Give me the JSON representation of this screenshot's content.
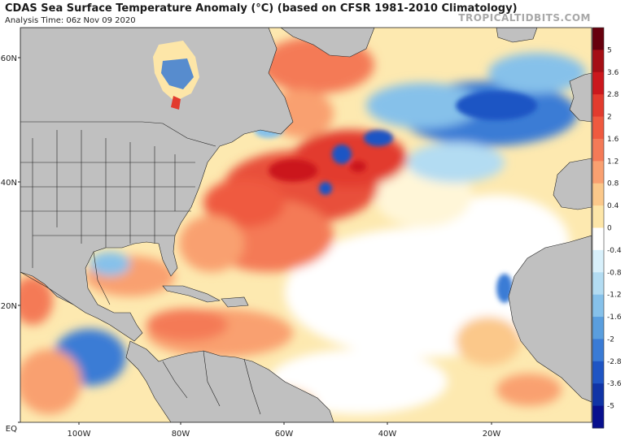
{
  "header": {
    "title": "CDAS Sea Surface Temperature Anomaly (°C) (based on CFSR 1981-2010 Climatology)",
    "analysis_time": "Analysis Time: 06z Nov 09 2020",
    "brand": "TROPICALTIDBITS.COM"
  },
  "map": {
    "lat_labels": [
      "60N",
      "40N",
      "20N",
      "EQ"
    ],
    "lon_labels": [
      "100W",
      "80W",
      "60W",
      "40W",
      "20W"
    ],
    "colors": {
      "land": "#c0c0c0",
      "ocean_neutral": "#ffffff",
      "border": "#222222"
    }
  },
  "colorbar": {
    "labels": [
      "5",
      "3.6",
      "2.8",
      "2",
      "1.6",
      "1.2",
      "0.8",
      "0.4",
      "0",
      "-0.4",
      "-0.8",
      "-1.2",
      "-1.6",
      "-2",
      "-2.8",
      "-3.6",
      "-5"
    ],
    "colors": [
      "#67000d",
      "#a50f15",
      "#cb181d",
      "#e23b2e",
      "#ef5a3f",
      "#f47a57",
      "#f9a070",
      "#fbc88a",
      "#fde6a8",
      "#ffffff",
      "#d8f0fb",
      "#b3dcf2",
      "#86c1ea",
      "#5a9ede",
      "#3a7bd5",
      "#1f55c4",
      "#1034a6",
      "#08108e"
    ]
  }
}
